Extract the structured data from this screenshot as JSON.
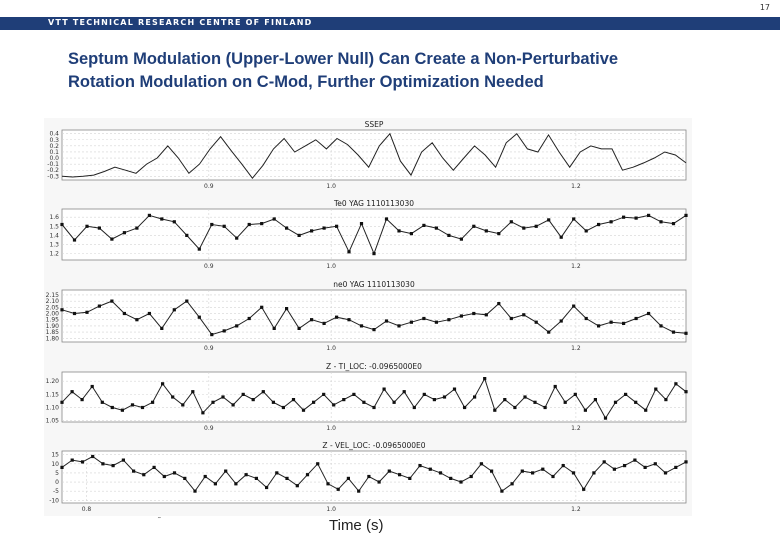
{
  "page_number": "17",
  "header": {
    "org": "VTT TECHNICAL RESEARCH CENTRE OF FINLAND"
  },
  "slide": {
    "title_line1": "Septum Modulation (Upper-Lower Null) Can Create a Non-Perturbative",
    "title_line2": "Rotation Modulation on C-Mod, Further Optimization Needed",
    "xlabel": "Time (s)",
    "tick_mark": "˜"
  },
  "colors": {
    "header_bar": "#1f3e78",
    "title": "#1f3e78",
    "trace": "#222222"
  },
  "chart_data": [
    {
      "type": "line",
      "title": "SSEP",
      "xlim": [
        0.78,
        1.29
      ],
      "ylim": [
        -0.36,
        0.46
      ],
      "ytick_labels": [
        "0.4",
        "0.3",
        "0.2",
        "0.1",
        "0.0",
        "-0.1",
        "-0.2",
        "-0.3"
      ],
      "ytick_values": [
        0.4,
        0.3,
        0.2,
        0.1,
        0.0,
        -0.1,
        -0.2,
        -0.3
      ],
      "xtick_labels": [
        "0.9",
        "1.0",
        "1.2"
      ],
      "xtick_values": [
        0.9,
        1.0,
        1.2
      ],
      "markers": false,
      "values": [
        -0.3,
        -0.31,
        -0.3,
        -0.28,
        -0.22,
        -0.15,
        -0.2,
        -0.25,
        -0.1,
        0.0,
        0.2,
        0.0,
        -0.25,
        -0.1,
        0.15,
        0.35,
        0.12,
        -0.1,
        -0.33,
        -0.12,
        0.15,
        0.32,
        0.1,
        0.2,
        0.3,
        0.15,
        0.32,
        0.22,
        0.05,
        -0.15,
        0.2,
        0.4,
        -0.05,
        -0.28,
        0.1,
        0.25,
        0.0,
        -0.2,
        0.0,
        0.2,
        0.05,
        -0.15,
        0.25,
        0.4,
        0.15,
        0.1,
        0.38,
        0.1,
        -0.15,
        0.1,
        0.2,
        0.15,
        0.15,
        -0.2,
        -0.15,
        -0.08,
        0.0,
        0.1,
        0.05,
        -0.08
      ]
    },
    {
      "type": "line",
      "title": "Te0 YAG 1110113030",
      "xlim": [
        0.78,
        1.29
      ],
      "ylim": [
        1.13,
        1.69
      ],
      "ytick_labels": [
        "1.6",
        "1.5",
        "1.4",
        "1.3",
        "1.2"
      ],
      "ytick_values": [
        1.6,
        1.5,
        1.4,
        1.3,
        1.2
      ],
      "xtick_labels": [
        "0.9",
        "1.0",
        "1.2"
      ],
      "xtick_values": [
        0.9,
        1.0,
        1.2
      ],
      "markers": true,
      "values": [
        1.52,
        1.35,
        1.5,
        1.48,
        1.36,
        1.43,
        1.48,
        1.62,
        1.58,
        1.55,
        1.4,
        1.25,
        1.52,
        1.5,
        1.37,
        1.52,
        1.53,
        1.58,
        1.48,
        1.4,
        1.45,
        1.48,
        1.5,
        1.22,
        1.53,
        1.2,
        1.58,
        1.45,
        1.42,
        1.51,
        1.48,
        1.4,
        1.36,
        1.5,
        1.45,
        1.42,
        1.55,
        1.48,
        1.5,
        1.57,
        1.38,
        1.58,
        1.45,
        1.52,
        1.55,
        1.6,
        1.59,
        1.62,
        1.55,
        1.53,
        1.62
      ]
    },
    {
      "type": "line",
      "title": "ne0 YAG 1110113030",
      "xlim": [
        0.78,
        1.29
      ],
      "ylim": [
        1.77,
        2.19
      ],
      "ytick_labels": [
        "2.15",
        "2.10",
        "2.05",
        "2.00",
        "1.95",
        "1.90",
        "1.85",
        "1.80"
      ],
      "ytick_values": [
        2.15,
        2.1,
        2.05,
        2.0,
        1.95,
        1.9,
        1.85,
        1.8
      ],
      "xtick_labels": [
        "0.9",
        "1.0",
        "1.2"
      ],
      "xtick_values": [
        0.9,
        1.0,
        1.2
      ],
      "markers": true,
      "values": [
        2.03,
        2.0,
        2.01,
        2.06,
        2.1,
        2.0,
        1.95,
        2.0,
        1.88,
        2.03,
        2.1,
        1.97,
        1.83,
        1.86,
        1.9,
        1.96,
        2.05,
        1.88,
        2.04,
        1.88,
        1.95,
        1.92,
        1.97,
        1.95,
        1.9,
        1.87,
        1.94,
        1.9,
        1.93,
        1.96,
        1.93,
        1.95,
        1.98,
        2.0,
        1.99,
        2.08,
        1.96,
        1.99,
        1.93,
        1.85,
        1.94,
        2.06,
        1.96,
        1.9,
        1.93,
        1.92,
        1.96,
        2.0,
        1.9,
        1.85,
        1.84
      ]
    },
    {
      "type": "line",
      "title": "Z - TI_LOC: -0.0965000E0",
      "xlim": [
        0.78,
        1.29
      ],
      "ylim": [
        1.045,
        1.235
      ],
      "ytick_labels": [
        "1.20",
        "1.15",
        "1.10",
        "1.05"
      ],
      "ytick_values": [
        1.2,
        1.15,
        1.1,
        1.05
      ],
      "xtick_labels": [
        "0.9",
        "1.0",
        "1.2"
      ],
      "xtick_values": [
        0.9,
        1.0,
        1.2
      ],
      "markers": true,
      "values": [
        1.12,
        1.16,
        1.13,
        1.18,
        1.12,
        1.1,
        1.09,
        1.11,
        1.1,
        1.12,
        1.19,
        1.14,
        1.11,
        1.16,
        1.08,
        1.12,
        1.14,
        1.11,
        1.15,
        1.13,
        1.16,
        1.12,
        1.1,
        1.13,
        1.09,
        1.12,
        1.15,
        1.11,
        1.13,
        1.15,
        1.12,
        1.1,
        1.17,
        1.12,
        1.16,
        1.1,
        1.15,
        1.13,
        1.14,
        1.17,
        1.1,
        1.14,
        1.21,
        1.09,
        1.13,
        1.1,
        1.14,
        1.12,
        1.1,
        1.18,
        1.12,
        1.15,
        1.09,
        1.13,
        1.06,
        1.12,
        1.15,
        1.12,
        1.09,
        1.17,
        1.13,
        1.19,
        1.16
      ]
    },
    {
      "type": "line",
      "title": "Z - VEL_LOC: -0.0965000E0",
      "xlim": [
        0.78,
        1.29
      ],
      "ylim": [
        -11.5,
        17
      ],
      "ytick_labels": [
        "15",
        "10",
        "5",
        "0",
        "-5",
        "-10"
      ],
      "ytick_values": [
        15,
        10,
        5,
        0,
        -5,
        -10
      ],
      "xtick_labels": [
        "0.8",
        "1.0",
        "1.2"
      ],
      "xtick_values": [
        0.8,
        1.0,
        1.2
      ],
      "markers": true,
      "values": [
        8,
        12,
        11,
        14,
        10,
        9,
        12,
        6,
        4,
        8,
        3,
        5,
        2,
        -5,
        3,
        -1,
        6,
        -1,
        4,
        2,
        -3,
        5,
        2,
        -2,
        4,
        10,
        -1,
        -4,
        2,
        -5,
        3,
        0,
        6,
        4,
        2,
        9,
        7,
        5,
        2,
        0,
        3,
        10,
        6,
        -5,
        -1,
        6,
        5,
        7,
        3,
        9,
        5,
        -4,
        5,
        11,
        7,
        9,
        12,
        8,
        10,
        5,
        8,
        11
      ]
    }
  ]
}
